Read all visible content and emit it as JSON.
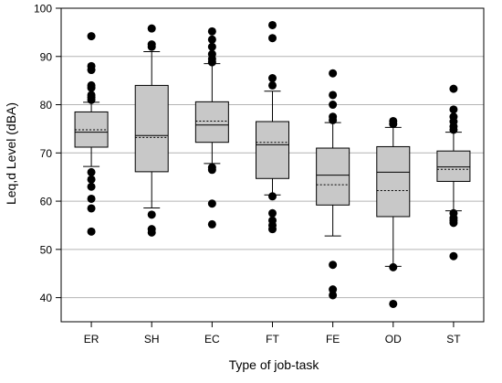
{
  "chart_data": {
    "type": "box",
    "xlabel": "Type of job-task",
    "ylabel": "Leq,d Level (dBA)",
    "ylim": [
      35,
      100
    ],
    "yticks": [
      40,
      50,
      60,
      70,
      80,
      90,
      100
    ],
    "grid": true,
    "colors": {
      "box_fill": "#c8c8c8",
      "grid": "#b4b4b4",
      "stroke": "#000000",
      "outlier": "#000000"
    },
    "categories": [
      "ER",
      "SH",
      "EC",
      "FT",
      "FE",
      "OD",
      "ST"
    ],
    "boxes": [
      {
        "category": "ER",
        "whisker_low": 67.2,
        "q1": 71.2,
        "median": 74.3,
        "mean": 74.8,
        "q3": 78.5,
        "whisker_high": 80.5,
        "outliers": [
          94.2,
          88.0,
          87.2,
          84.0,
          83.5,
          82.0,
          81.5,
          81.0,
          66.0,
          64.5,
          63.0,
          60.5,
          58.5,
          53.7
        ]
      },
      {
        "category": "SH",
        "whisker_low": 58.6,
        "q1": 66.1,
        "median": 73.6,
        "mean": 73.2,
        "q3": 84.0,
        "whisker_high": 91.0,
        "outliers": [
          95.8,
          92.5,
          92.0,
          57.2,
          54.2,
          53.5
        ]
      },
      {
        "category": "EC",
        "whisker_low": 67.8,
        "q1": 72.2,
        "median": 75.8,
        "mean": 76.6,
        "q3": 80.6,
        "whisker_high": 88.5,
        "outliers": [
          95.2,
          93.5,
          92.0,
          90.5,
          89.5,
          88.8,
          67.0,
          66.5,
          59.5,
          55.2
        ]
      },
      {
        "category": "FT",
        "whisker_low": 61.3,
        "q1": 64.7,
        "median": 71.7,
        "mean": 72.2,
        "q3": 76.5,
        "whisker_high": 82.8,
        "outliers": [
          96.5,
          93.8,
          85.5,
          84.0,
          61.0,
          57.5,
          56.0,
          55.0,
          54.2
        ]
      },
      {
        "category": "FE",
        "whisker_low": 52.8,
        "q1": 59.2,
        "median": 65.4,
        "mean": 63.4,
        "q3": 71.0,
        "whisker_high": 76.3,
        "outliers": [
          86.5,
          82.0,
          80.0,
          77.5,
          76.8,
          46.8,
          41.7,
          40.5
        ]
      },
      {
        "category": "OD",
        "whisker_low": 46.5,
        "q1": 56.8,
        "median": 66.0,
        "mean": 62.2,
        "q3": 71.3,
        "whisker_high": 75.3,
        "outliers": [
          76.6,
          76.0,
          46.3,
          38.7
        ]
      },
      {
        "category": "ST",
        "whisker_low": 58.0,
        "q1": 64.1,
        "median": 67.1,
        "mean": 66.6,
        "q3": 70.4,
        "whisker_high": 74.3,
        "outliers": [
          83.3,
          79.0,
          77.5,
          76.5,
          75.5,
          74.8,
          57.5,
          56.5,
          56.0,
          55.5,
          48.6
        ]
      }
    ]
  }
}
